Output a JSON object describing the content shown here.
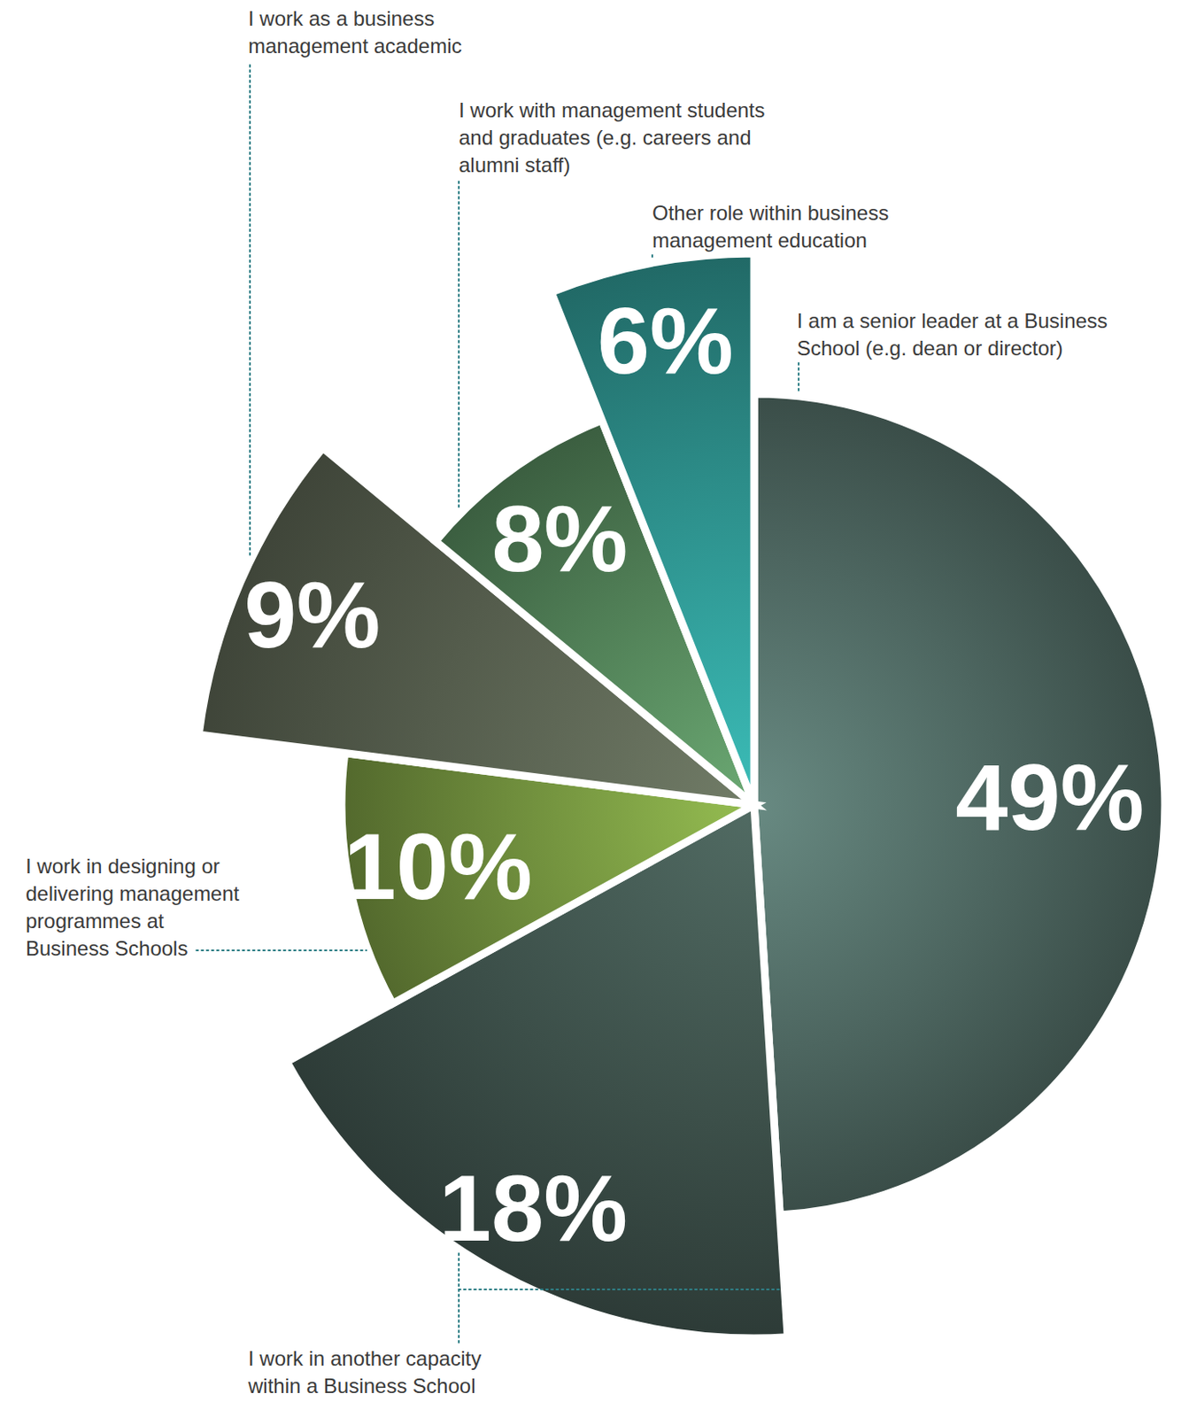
{
  "chart_data": {
    "type": "pie",
    "categories": [
      "I am a senior leader at a Business School (e.g. dean or director)",
      "I work in another capacity within a Business School",
      "I work in designing or delivering management programmes at Business Schools",
      "I work as a business management academic",
      "I work with management students and graduates (e.g. careers and alumni staff)",
      "Other role within business management education"
    ],
    "values": [
      49,
      18,
      10,
      9,
      8,
      6
    ],
    "value_labels": [
      "49%",
      "18%",
      "10%",
      "9%",
      "8%",
      "6%"
    ],
    "colors": [
      "#4d6660",
      "#3c4f49",
      "#6e8c3c",
      "#545c4c",
      "#4f7d55",
      "#2c8c88"
    ],
    "data_labels": true
  }
}
